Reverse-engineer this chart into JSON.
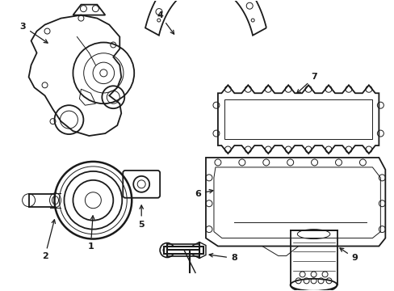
{
  "background_color": "#ffffff",
  "line_color": "#1a1a1a",
  "figsize": [
    4.89,
    3.6
  ],
  "dpi": 100,
  "lw_main": 1.3,
  "lw_thin": 0.7,
  "lw_thick": 1.8
}
